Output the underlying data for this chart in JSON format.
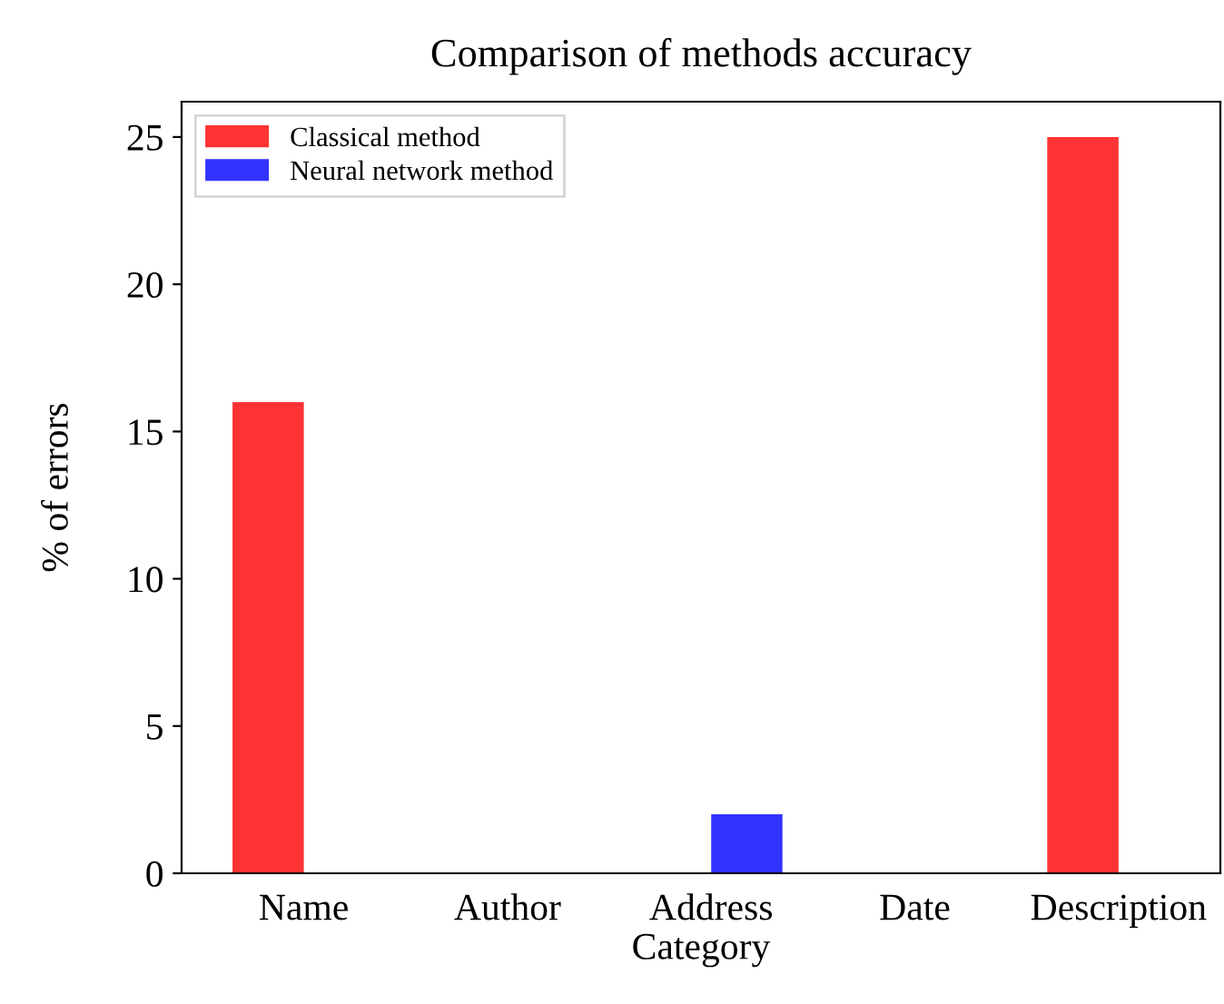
{
  "chart_data": {
    "type": "bar",
    "title": "Comparison of methods accuracy",
    "xlabel": "Category",
    "ylabel": "% of errors",
    "categories": [
      "Name",
      "Author",
      "Address",
      "Date",
      "Description"
    ],
    "series": [
      {
        "name": "Classical method",
        "color": "#ff3333",
        "values": [
          16,
          0,
          0,
          0,
          25
        ]
      },
      {
        "name": "Neural network method",
        "color": "#3333ff",
        "values": [
          0,
          0,
          2,
          0,
          0
        ]
      }
    ],
    "ylim": [
      0,
      26.2
    ],
    "yticks": [
      0,
      5,
      10,
      15,
      20,
      25
    ],
    "legend": "top left"
  }
}
